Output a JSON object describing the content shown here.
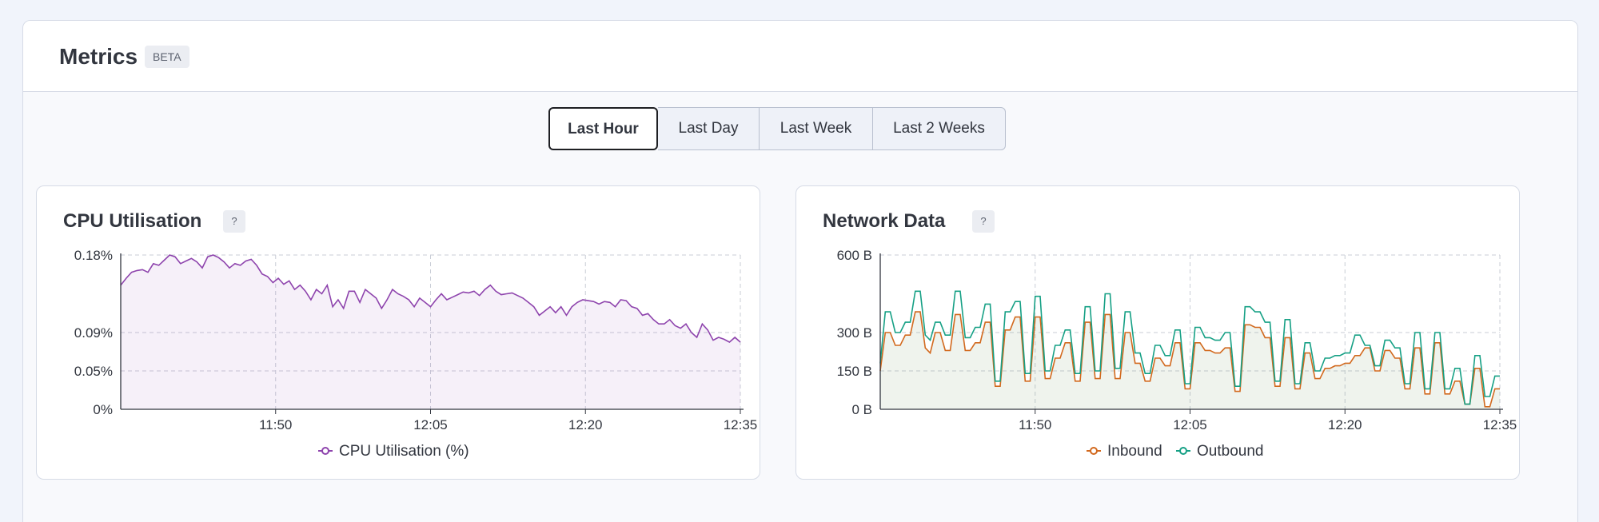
{
  "header": {
    "title": "Metrics",
    "badge": "BETA"
  },
  "range_tabs": [
    {
      "label": "Last Hour",
      "active": true
    },
    {
      "label": "Last Day",
      "active": false
    },
    {
      "label": "Last Week",
      "active": false
    },
    {
      "label": "Last 2 Weeks",
      "active": false
    }
  ],
  "cards": {
    "cpu": {
      "title": "CPU Utilisation",
      "help": "?"
    },
    "network": {
      "title": "Network Data",
      "help": "?"
    }
  },
  "colors": {
    "cpu": "#8e44ad",
    "inbound": "#d2691e",
    "outbound": "#16a085",
    "accent": "#1e1f23"
  },
  "chart_data": [
    {
      "type": "line",
      "title": "CPU Utilisation",
      "x_ticks": [
        "11:50",
        "12:05",
        "12:20",
        "12:35"
      ],
      "y_ticks": [
        "0%",
        "0.05%",
        "0.09%",
        "0.18%"
      ],
      "y_tick_values": [
        0,
        0.05,
        0.09,
        0.18
      ],
      "ylim": [
        0,
        0.18
      ],
      "xlim_minutes": [
        0,
        60
      ],
      "x_tick_minutes": [
        15,
        30,
        45,
        60
      ],
      "grid": true,
      "legend_position": "bottom-center",
      "series": [
        {
          "name": "CPU Utilisation (%)",
          "color": "#8e44ad",
          "values": [
            0.145,
            0.153,
            0.16,
            0.162,
            0.163,
            0.16,
            0.17,
            0.168,
            0.174,
            0.18,
            0.178,
            0.17,
            0.173,
            0.176,
            0.172,
            0.165,
            0.178,
            0.183,
            0.177,
            0.172,
            0.165,
            0.17,
            0.168,
            0.173,
            0.175,
            0.168,
            0.158,
            0.155,
            0.148,
            0.153,
            0.146,
            0.15,
            0.14,
            0.145,
            0.138,
            0.128,
            0.14,
            0.135,
            0.145,
            0.12,
            0.128,
            0.118,
            0.138,
            0.138,
            0.125,
            0.14,
            0.135,
            0.13,
            0.118,
            0.128,
            0.14,
            0.135,
            0.132,
            0.128,
            0.12,
            0.13,
            0.125,
            0.12,
            0.128,
            0.135,
            0.128,
            0.131,
            0.134,
            0.137,
            0.136,
            0.138,
            0.133,
            0.14,
            0.145,
            0.138,
            0.134,
            0.135,
            0.136,
            0.133,
            0.13,
            0.125,
            0.12,
            0.11,
            0.115,
            0.12,
            0.113,
            0.12,
            0.11,
            0.12,
            0.125,
            0.128,
            0.127,
            0.126,
            0.123,
            0.126,
            0.125,
            0.12,
            0.128,
            0.127,
            0.12,
            0.118,
            0.11,
            0.112,
            0.105,
            0.1,
            0.1,
            0.105,
            0.098,
            0.095,
            0.1,
            0.09,
            0.085,
            0.1,
            0.093,
            0.082,
            0.085,
            0.083,
            0.08,
            0.085,
            0.08
          ]
        }
      ]
    },
    {
      "type": "line",
      "title": "Network Data",
      "x_ticks": [
        "11:50",
        "12:05",
        "12:20",
        "12:35"
      ],
      "y_ticks": [
        "0 B",
        "150 B",
        "300 B",
        "600 B"
      ],
      "y_tick_values": [
        0,
        150,
        300,
        600
      ],
      "ylim": [
        0,
        600
      ],
      "xlim_minutes": [
        0,
        60
      ],
      "x_tick_minutes": [
        15,
        30,
        45,
        60
      ],
      "grid": true,
      "legend_position": "bottom-center",
      "series": [
        {
          "name": "Inbound",
          "color": "#d2691e",
          "values": [
            150,
            300,
            300,
            250,
            250,
            290,
            290,
            380,
            380,
            240,
            220,
            300,
            300,
            230,
            230,
            370,
            370,
            230,
            230,
            260,
            260,
            340,
            340,
            90,
            90,
            310,
            310,
            360,
            360,
            110,
            110,
            360,
            360,
            120,
            120,
            200,
            200,
            260,
            260,
            110,
            110,
            340,
            340,
            120,
            120,
            370,
            370,
            120,
            120,
            300,
            300,
            180,
            180,
            110,
            110,
            200,
            200,
            170,
            170,
            260,
            260,
            80,
            80,
            260,
            260,
            230,
            230,
            220,
            220,
            240,
            240,
            70,
            70,
            330,
            330,
            320,
            320,
            280,
            280,
            90,
            90,
            280,
            280,
            80,
            80,
            220,
            220,
            120,
            120,
            160,
            160,
            170,
            170,
            180,
            180,
            210,
            210,
            240,
            240,
            150,
            150,
            230,
            230,
            200,
            200,
            80,
            80,
            240,
            240,
            60,
            60,
            260,
            260,
            60,
            60,
            110,
            110,
            20,
            20,
            160,
            160,
            10,
            10,
            80,
            80
          ]
        },
        {
          "name": "Outbound",
          "color": "#16a085",
          "values": [
            180,
            380,
            380,
            300,
            300,
            340,
            340,
            460,
            460,
            290,
            270,
            340,
            340,
            290,
            290,
            460,
            460,
            280,
            280,
            320,
            320,
            410,
            410,
            110,
            110,
            380,
            380,
            420,
            420,
            140,
            140,
            440,
            440,
            150,
            150,
            250,
            250,
            310,
            310,
            140,
            140,
            400,
            400,
            150,
            150,
            450,
            450,
            160,
            160,
            380,
            380,
            220,
            220,
            140,
            140,
            250,
            250,
            210,
            210,
            310,
            310,
            100,
            100,
            320,
            320,
            280,
            280,
            270,
            270,
            300,
            300,
            90,
            90,
            400,
            400,
            380,
            380,
            340,
            340,
            110,
            110,
            350,
            350,
            100,
            100,
            260,
            260,
            150,
            150,
            200,
            200,
            210,
            210,
            220,
            220,
            290,
            290,
            250,
            250,
            170,
            170,
            270,
            270,
            240,
            240,
            100,
            100,
            300,
            300,
            80,
            80,
            300,
            300,
            80,
            80,
            160,
            160,
            20,
            20,
            210,
            210,
            50,
            50,
            130,
            130
          ]
        }
      ]
    }
  ]
}
